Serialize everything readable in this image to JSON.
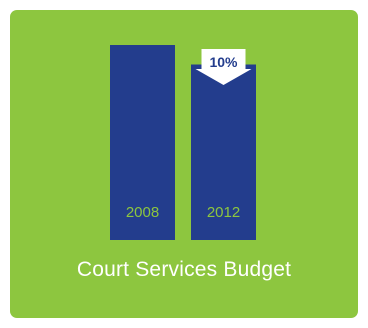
{
  "chart_data": {
    "type": "bar",
    "title": "Court Services Budget",
    "categories": [
      "2008",
      "2012"
    ],
    "values": [
      100,
      90
    ],
    "ylim": [
      0,
      100
    ],
    "annotation": {
      "text": "10%",
      "meaning": "decrease"
    },
    "colors": {
      "bar": "#233d8d",
      "background": "#8dc63f",
      "label": "#8dc63f",
      "arrow": "#ffffff"
    }
  }
}
